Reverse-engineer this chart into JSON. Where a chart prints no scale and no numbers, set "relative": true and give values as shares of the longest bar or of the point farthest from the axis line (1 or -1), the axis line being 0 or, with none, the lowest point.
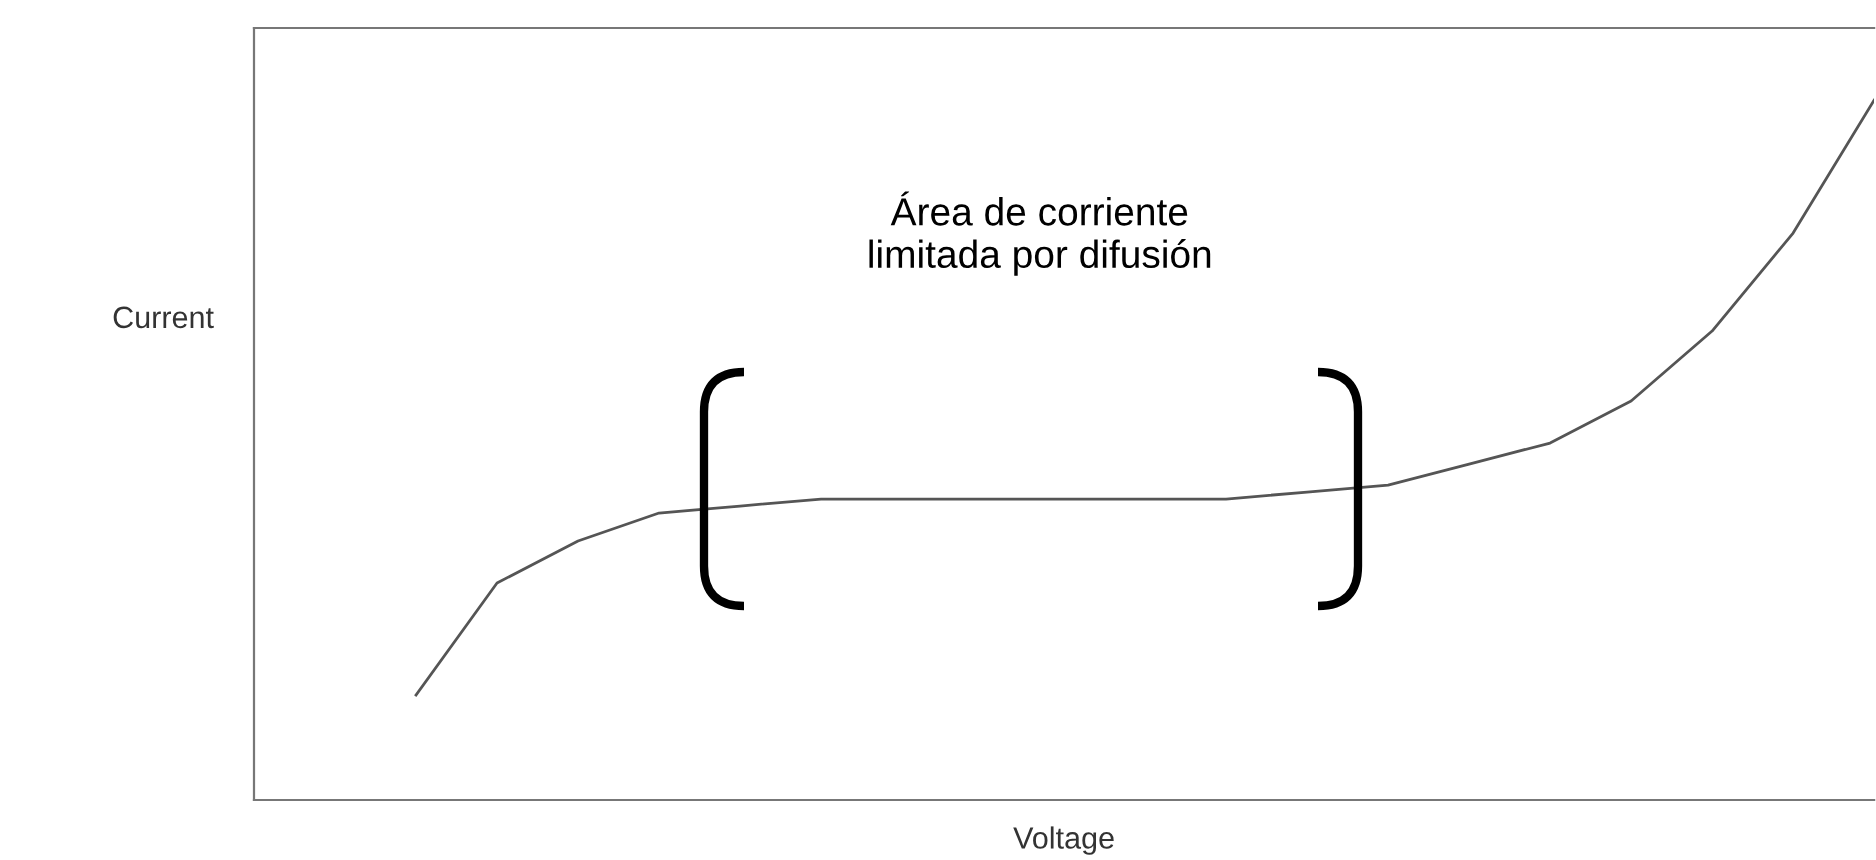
{
  "chart_data": {
    "type": "line",
    "relative": true,
    "xlabel": "Voltage",
    "ylabel": "Current",
    "categories": [
      null,
      null,
      null,
      null,
      null,
      null,
      null,
      null,
      null,
      null,
      null,
      null,
      null,
      null,
      null,
      null,
      null,
      null,
      null,
      null,
      null
    ],
    "series": [
      {
        "color": "#555555",
        "values": [
          null,
          null,
          0.15,
          0.31,
          0.37,
          0.41,
          0.42,
          0.43,
          0.43,
          0.43,
          0.43,
          0.43,
          0.43,
          0.44,
          0.45,
          0.48,
          0.51,
          0.57,
          0.67,
          0.81,
          1
        ]
      }
    ],
    "annotations": [
      "Área de corriente\nlimitada por difusión"
    ],
    "grid": false,
    "legend": false,
    "marker": "none",
    "line_style": "solid"
  }
}
